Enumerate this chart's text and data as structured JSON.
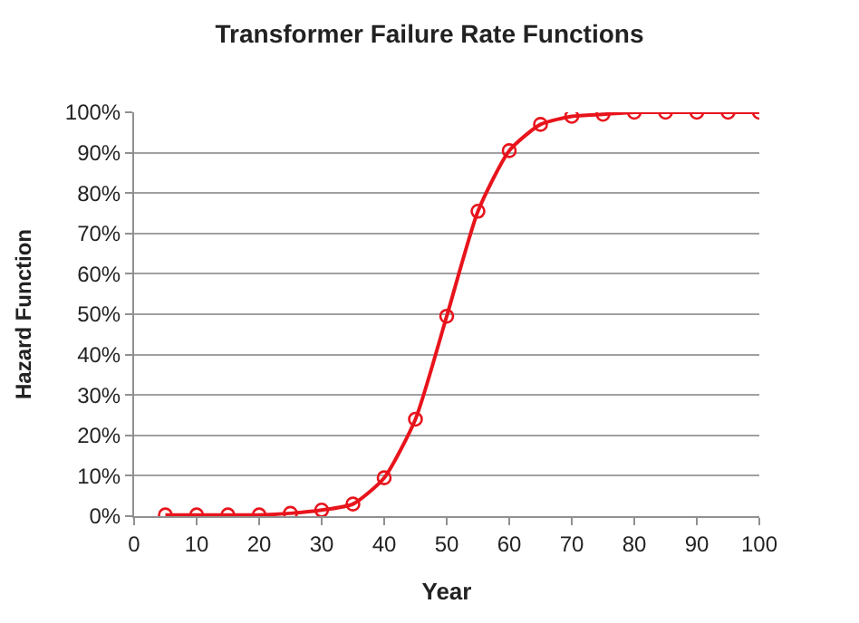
{
  "chart_data": {
    "type": "line",
    "title": "Transformer Failure Rate Functions",
    "xlabel": "Year",
    "ylabel": "Hazard Function",
    "x": [
      5,
      10,
      15,
      20,
      25,
      30,
      35,
      40,
      45,
      50,
      55,
      60,
      65,
      70,
      75,
      80,
      85,
      90,
      95,
      100
    ],
    "series": [
      {
        "color": "#e8141c",
        "values": [
          0.3,
          0.3,
          0.3,
          0.3,
          0.7,
          1.5,
          3,
          9.5,
          24,
          49.5,
          75.5,
          90.5,
          97,
          99,
          99.5,
          100,
          100,
          100,
          100,
          100
        ]
      }
    ],
    "xlim": [
      0,
      100
    ],
    "xticks": [
      0,
      10,
      20,
      30,
      40,
      50,
      60,
      70,
      80,
      90,
      100
    ],
    "ylim": [
      0,
      100
    ],
    "yticks": [
      {
        "value": 0,
        "label": "0%"
      },
      {
        "value": 10,
        "label": "10%"
      },
      {
        "value": 20,
        "label": "20%"
      },
      {
        "value": 30,
        "label": "30%"
      },
      {
        "value": 40,
        "label": "40%"
      },
      {
        "value": 50,
        "label": "50%"
      },
      {
        "value": 60,
        "label": "60%"
      },
      {
        "value": 70,
        "label": "70%"
      },
      {
        "value": 80,
        "label": "80%"
      },
      {
        "value": 90,
        "label": "90%"
      },
      {
        "value": 100,
        "label": "100%"
      }
    ],
    "grid": "y",
    "legend": false,
    "marker": "circle",
    "line_style": "solid"
  }
}
